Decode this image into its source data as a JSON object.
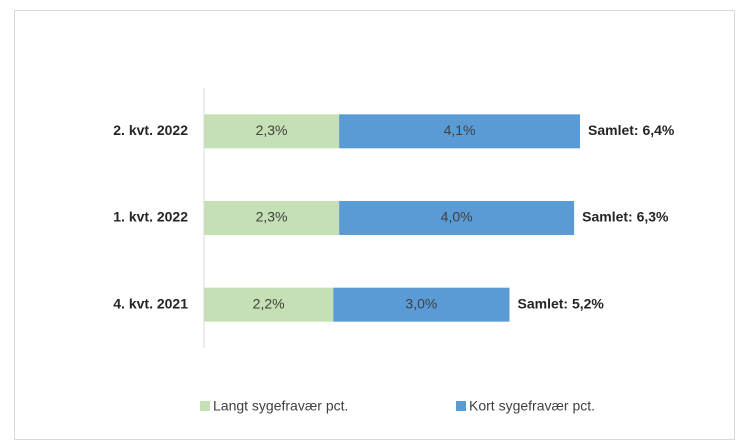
{
  "chart_data": {
    "type": "stacked_barh",
    "categories": [
      "2. kvt. 2022",
      "1. kvt. 2022",
      "4. kvt. 2021"
    ],
    "series": [
      {
        "name": "Langt sygefravær pct.",
        "color": "#c5e0b4",
        "values": [
          2.3,
          2.3,
          2.2
        ],
        "value_labels": [
          "2,3%",
          "2,3%",
          "2,2%"
        ]
      },
      {
        "name": "Kort sygefravær pct.",
        "color": "#5b9bd5",
        "values": [
          4.1,
          4.0,
          3.0
        ],
        "value_labels": [
          "4,1%",
          "4,0%",
          "3,0%"
        ]
      }
    ],
    "total_labels": [
      "Samlet: 6,4%",
      "Samlet: 6,3%",
      "Samlet: 5,2%"
    ],
    "xlim": [
      0,
      8
    ],
    "legend": "bottom"
  }
}
